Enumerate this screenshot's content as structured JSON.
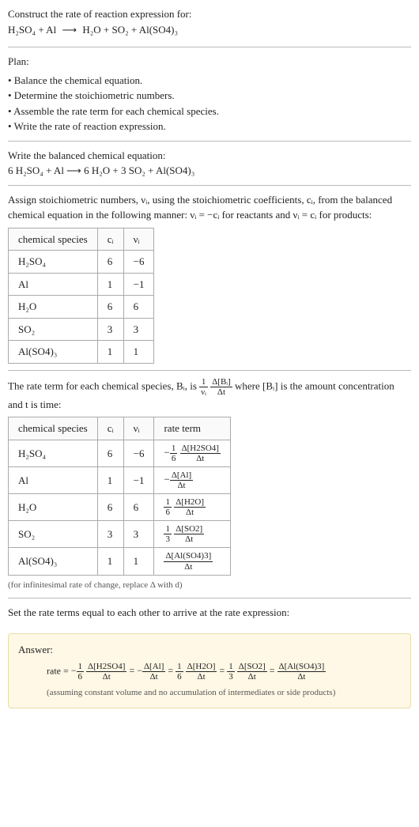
{
  "question": {
    "prompt": "Construct the rate of reaction expression for:",
    "equation_lhs": "H₂SO₄ + Al",
    "equation_arrow": "⟶",
    "equation_rhs": "H₂O + SO₂ + Al(SO4)₃"
  },
  "plan": {
    "heading": "Plan:",
    "items": [
      "• Balance the chemical equation.",
      "• Determine the stoichiometric numbers.",
      "• Assemble the rate term for each chemical species.",
      "• Write the rate of reaction expression."
    ]
  },
  "balanced": {
    "heading": "Write the balanced chemical equation:",
    "equation": "6 H₂SO₄ + Al  ⟶  6 H₂O + 3 SO₂ + Al(SO4)₃"
  },
  "assign": {
    "text_before": "Assign stoichiometric numbers, νᵢ, using the stoichiometric coefficients, cᵢ, from the balanced chemical equation in the following manner: νᵢ = −cᵢ for reactants and νᵢ = cᵢ for products:",
    "headers": [
      "chemical species",
      "cᵢ",
      "νᵢ"
    ],
    "rows": [
      [
        "H₂SO₄",
        "6",
        "−6"
      ],
      [
        "Al",
        "1",
        "−1"
      ],
      [
        "H₂O",
        "6",
        "6"
      ],
      [
        "SO₂",
        "3",
        "3"
      ],
      [
        "Al(SO4)₃",
        "1",
        "1"
      ]
    ]
  },
  "rateterm_intro": {
    "before": "The rate term for each chemical species, Bᵢ, is ",
    "coeff_num": "1",
    "coeff_den": "νᵢ",
    "frac_num": "Δ[Bᵢ]",
    "frac_den": "Δt",
    "after": " where [Bᵢ] is the amount concentration and t is time:"
  },
  "rate_table": {
    "headers": [
      "chemical species",
      "cᵢ",
      "νᵢ",
      "rate term"
    ],
    "rows": [
      {
        "sp": "H₂SO₄",
        "c": "6",
        "v": "−6",
        "sign": "−",
        "cn": "1",
        "cd": "6",
        "num": "Δ[H2SO4]",
        "den": "Δt"
      },
      {
        "sp": "Al",
        "c": "1",
        "v": "−1",
        "sign": "−",
        "cn": "",
        "cd": "",
        "num": "Δ[Al]",
        "den": "Δt"
      },
      {
        "sp": "H₂O",
        "c": "6",
        "v": "6",
        "sign": "",
        "cn": "1",
        "cd": "6",
        "num": "Δ[H2O]",
        "den": "Δt"
      },
      {
        "sp": "SO₂",
        "c": "3",
        "v": "3",
        "sign": "",
        "cn": "1",
        "cd": "3",
        "num": "Δ[SO2]",
        "den": "Δt"
      },
      {
        "sp": "Al(SO4)₃",
        "c": "1",
        "v": "1",
        "sign": "",
        "cn": "",
        "cd": "",
        "num": "Δ[Al(SO4)3]",
        "den": "Δt"
      }
    ],
    "note": "(for infinitesimal rate of change, replace Δ with d)"
  },
  "set_equal": "Set the rate terms equal to each other to arrive at the rate expression:",
  "answer": {
    "label": "Answer:",
    "prefix": "rate = ",
    "terms": [
      {
        "sign": "−",
        "cn": "1",
        "cd": "6",
        "num": "Δ[H2SO4]",
        "den": "Δt"
      },
      {
        "sign": "= −",
        "cn": "",
        "cd": "",
        "num": "Δ[Al]",
        "den": "Δt"
      },
      {
        "sign": "= ",
        "cn": "1",
        "cd": "6",
        "num": "Δ[H2O]",
        "den": "Δt"
      },
      {
        "sign": "= ",
        "cn": "1",
        "cd": "3",
        "num": "Δ[SO2]",
        "den": "Δt"
      },
      {
        "sign": "= ",
        "cn": "",
        "cd": "",
        "num": "Δ[Al(SO4)3]",
        "den": "Δt"
      }
    ],
    "note": "(assuming constant volume and no accumulation of intermediates or side products)"
  }
}
